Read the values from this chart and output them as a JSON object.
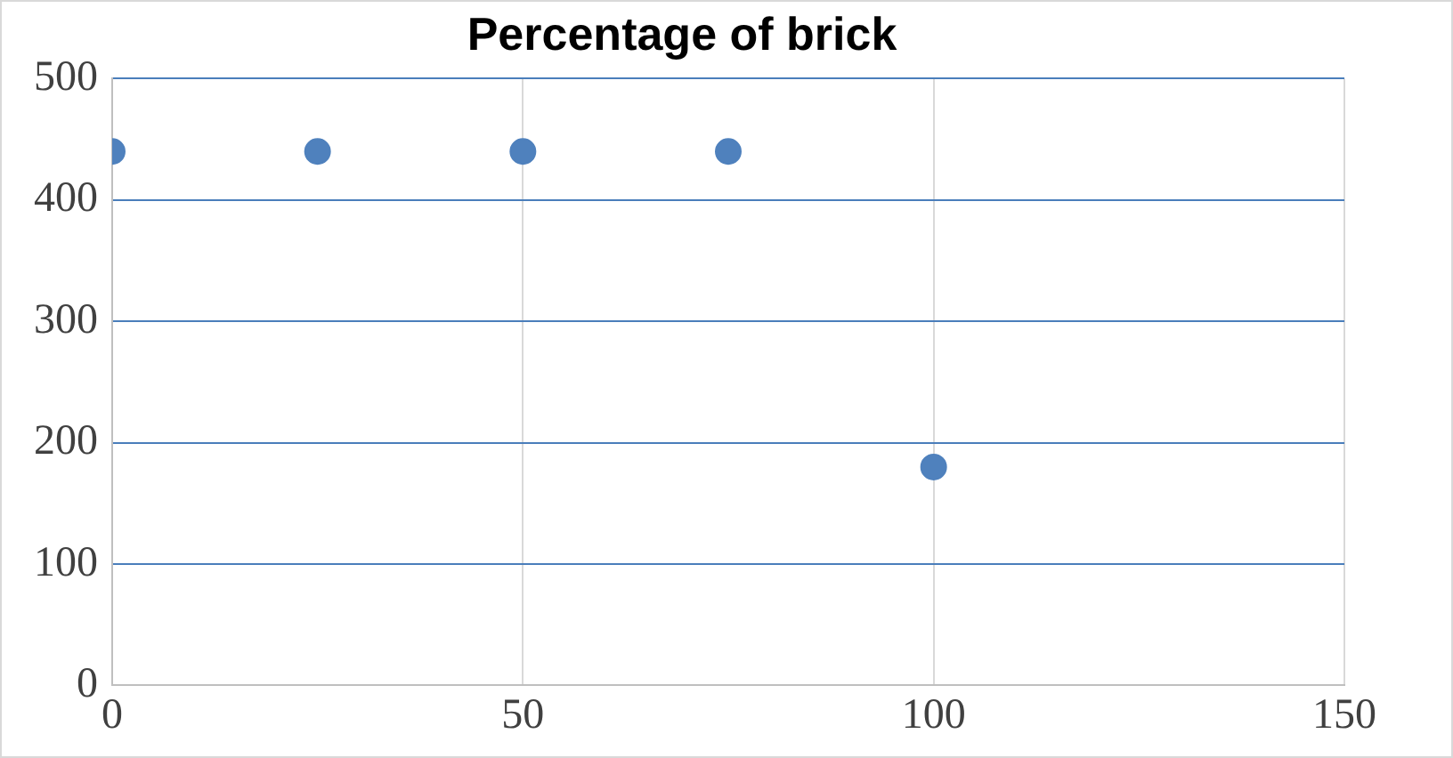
{
  "chart_data": {
    "type": "scatter",
    "title": "Percentage of brick",
    "x": [
      0,
      25,
      50,
      75,
      100
    ],
    "series": [
      {
        "color": "#4f81bd",
        "values": [
          440,
          440,
          440,
          440,
          180
        ]
      }
    ],
    "xlim": [
      0,
      150
    ],
    "xticks": [
      0,
      50,
      100,
      150
    ],
    "ylim": [
      0,
      500
    ],
    "yticks": [
      0,
      100,
      200,
      300,
      400,
      500
    ],
    "grid": true,
    "marker": "circle",
    "legend": false
  }
}
